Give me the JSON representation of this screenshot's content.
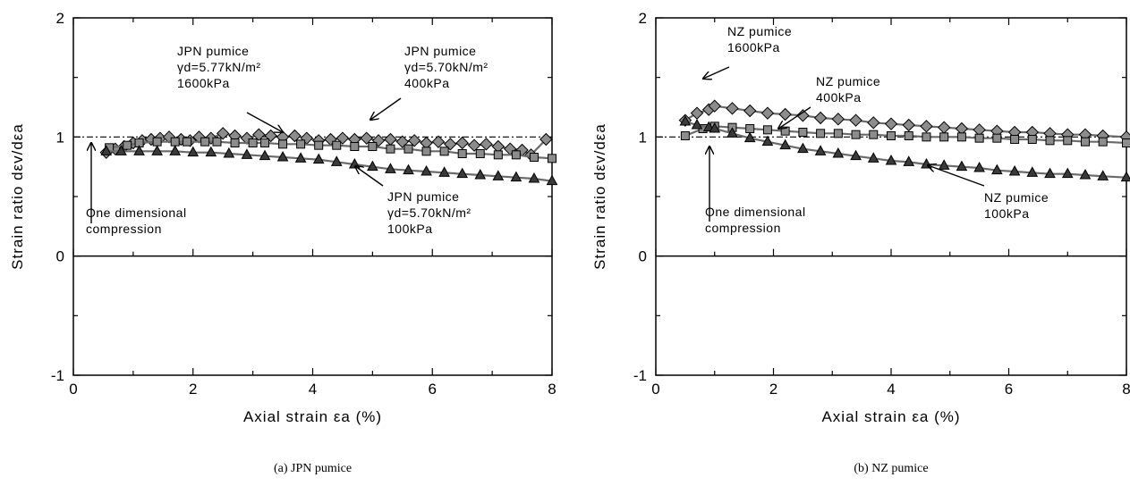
{
  "chart_data": [
    {
      "type": "line",
      "caption": "(a)  JPN pumice",
      "xlabel": "Axial strain εa (%)",
      "ylabel": "Strain ratio dεv/dεa",
      "xlim": [
        0,
        8
      ],
      "ylim": [
        -1,
        2
      ],
      "xticks": [
        "0",
        "2",
        "4",
        "6",
        "8"
      ],
      "yticks": [
        "-1",
        "0",
        "1",
        "2"
      ],
      "reference_line": 1,
      "grid": false,
      "series": [
        {
          "marker": "diamond",
          "x": [
            0.55,
            0.7,
            0.85,
            1.0,
            1.15,
            1.3,
            1.45,
            1.6,
            1.8,
            1.95,
            2.1,
            2.3,
            2.5,
            2.7,
            2.9,
            3.1,
            3.3,
            3.5,
            3.7,
            3.9,
            4.1,
            4.3,
            4.5,
            4.7,
            4.9,
            5.1,
            5.3,
            5.5,
            5.7,
            5.9,
            6.1,
            6.3,
            6.5,
            6.7,
            6.9,
            7.1,
            7.3,
            7.5,
            7.65,
            7.9
          ],
          "y": [
            0.87,
            0.9,
            0.92,
            0.95,
            0.97,
            0.98,
            0.99,
            1.0,
            0.98,
            0.97,
            1.0,
            0.99,
            1.03,
            1.01,
            0.99,
            1.02,
            1.01,
            1.0,
            1.01,
            0.99,
            0.97,
            0.98,
            0.99,
            0.98,
            0.99,
            0.97,
            0.98,
            0.96,
            0.97,
            0.95,
            0.96,
            0.94,
            0.95,
            0.93,
            0.94,
            0.92,
            0.9,
            0.89,
            0.85,
            0.98
          ]
        },
        {
          "marker": "square",
          "x": [
            0.6,
            0.9,
            1.1,
            1.4,
            1.7,
            1.9,
            2.2,
            2.4,
            2.7,
            3.0,
            3.2,
            3.5,
            3.8,
            4.1,
            4.4,
            4.7,
            5.0,
            5.3,
            5.6,
            5.9,
            6.2,
            6.5,
            6.8,
            7.1,
            7.4,
            7.7,
            8.0
          ],
          "y": [
            0.91,
            0.93,
            0.95,
            0.96,
            0.96,
            0.96,
            0.96,
            0.96,
            0.95,
            0.95,
            0.95,
            0.94,
            0.94,
            0.93,
            0.93,
            0.92,
            0.92,
            0.9,
            0.9,
            0.88,
            0.88,
            0.86,
            0.86,
            0.85,
            0.85,
            0.83,
            0.82
          ]
        },
        {
          "marker": "triangle",
          "x": [
            0.55,
            0.8,
            1.1,
            1.4,
            1.7,
            2.0,
            2.3,
            2.6,
            2.9,
            3.2,
            3.5,
            3.8,
            4.1,
            4.4,
            4.7,
            5.0,
            5.3,
            5.6,
            5.9,
            6.2,
            6.5,
            6.8,
            7.1,
            7.4,
            7.7,
            8.0
          ],
          "y": [
            0.88,
            0.88,
            0.88,
            0.88,
            0.88,
            0.87,
            0.87,
            0.86,
            0.85,
            0.84,
            0.83,
            0.82,
            0.81,
            0.79,
            0.77,
            0.75,
            0.73,
            0.72,
            0.71,
            0.7,
            0.69,
            0.68,
            0.67,
            0.66,
            0.65,
            0.63
          ]
        }
      ],
      "annotations": [
        {
          "lines": [
            "JPN pumice",
            "γd=5.77kN/m²",
            "1600kPa"
          ]
        },
        {
          "lines": [
            "JPN pumice",
            "γd=5.70kN/m²",
            "400kPa"
          ]
        },
        {
          "lines": [
            "JPN pumice",
            "γd=5.70kN/m²",
            "100kPa"
          ]
        },
        {
          "lines": [
            "One dimensional",
            "compression"
          ]
        }
      ]
    },
    {
      "type": "line",
      "caption": "(b) NZ pumice",
      "xlabel": "Axial strain εa (%)",
      "ylabel": "Strain ratio dεv/dεa",
      "xlim": [
        0,
        8
      ],
      "ylim": [
        -1,
        2
      ],
      "xticks": [
        "0",
        "2",
        "4",
        "6",
        "8"
      ],
      "yticks": [
        "-1",
        "0",
        "1",
        "2"
      ],
      "reference_line": 1,
      "grid": false,
      "series": [
        {
          "marker": "diamond",
          "x": [
            0.5,
            0.7,
            0.9,
            1.0,
            1.3,
            1.6,
            1.9,
            2.2,
            2.5,
            2.8,
            3.1,
            3.4,
            3.7,
            4.0,
            4.3,
            4.6,
            4.9,
            5.2,
            5.5,
            5.8,
            6.1,
            6.4,
            6.7,
            7.0,
            7.3,
            7.6,
            8.0
          ],
          "y": [
            1.14,
            1.2,
            1.23,
            1.26,
            1.24,
            1.22,
            1.2,
            1.19,
            1.18,
            1.16,
            1.15,
            1.14,
            1.12,
            1.11,
            1.1,
            1.09,
            1.08,
            1.07,
            1.06,
            1.05,
            1.04,
            1.04,
            1.03,
            1.02,
            1.02,
            1.01,
            1.0
          ]
        },
        {
          "marker": "square",
          "x": [
            0.5,
            0.8,
            1.0,
            1.3,
            1.6,
            1.9,
            2.2,
            2.5,
            2.8,
            3.1,
            3.4,
            3.7,
            4.0,
            4.3,
            4.6,
            4.9,
            5.2,
            5.5,
            5.8,
            6.1,
            6.4,
            6.7,
            7.0,
            7.3,
            7.6,
            8.0
          ],
          "y": [
            1.01,
            1.07,
            1.09,
            1.08,
            1.07,
            1.06,
            1.05,
            1.04,
            1.03,
            1.03,
            1.02,
            1.02,
            1.01,
            1.01,
            1.0,
            1.0,
            1.0,
            0.99,
            0.99,
            0.98,
            0.98,
            0.97,
            0.97,
            0.96,
            0.96,
            0.95
          ]
        },
        {
          "marker": "triangle",
          "x": [
            0.5,
            0.7,
            0.9,
            1.0,
            1.3,
            1.6,
            1.9,
            2.2,
            2.5,
            2.8,
            3.1,
            3.4,
            3.7,
            4.0,
            4.3,
            4.6,
            4.9,
            5.2,
            5.5,
            5.8,
            6.1,
            6.4,
            6.7,
            7.0,
            7.3,
            7.6,
            8.0
          ],
          "y": [
            1.13,
            1.1,
            1.08,
            1.07,
            1.03,
            0.99,
            0.96,
            0.93,
            0.9,
            0.88,
            0.86,
            0.84,
            0.82,
            0.8,
            0.79,
            0.77,
            0.76,
            0.75,
            0.74,
            0.72,
            0.71,
            0.7,
            0.69,
            0.69,
            0.68,
            0.67,
            0.66
          ]
        }
      ],
      "annotations": [
        {
          "lines": [
            "NZ pumice",
            "1600kPa"
          ]
        },
        {
          "lines": [
            "NZ pumice",
            "400kPa"
          ]
        },
        {
          "lines": [
            "NZ pumice",
            "100kPa"
          ]
        },
        {
          "lines": [
            "One dimensional",
            "compression"
          ]
        }
      ]
    }
  ]
}
